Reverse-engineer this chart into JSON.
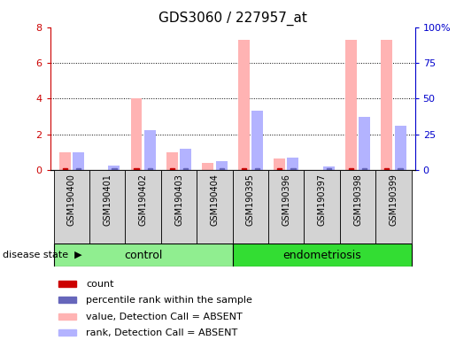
{
  "title": "GDS3060 / 227957_at",
  "samples": [
    "GSM190400",
    "GSM190401",
    "GSM190402",
    "GSM190403",
    "GSM190404",
    "GSM190395",
    "GSM190396",
    "GSM190397",
    "GSM190398",
    "GSM190399"
  ],
  "pink_values": [
    1.0,
    0.0,
    4.0,
    1.0,
    0.38,
    7.3,
    0.65,
    0.0,
    7.3,
    7.3
  ],
  "blue_values": [
    1.0,
    0.25,
    2.22,
    1.2,
    0.5,
    3.3,
    0.68,
    0.22,
    3.0,
    2.5
  ],
  "red_counts": [
    1,
    0,
    1,
    1,
    0,
    1,
    1,
    0,
    1,
    1
  ],
  "blue_counts": [
    1,
    1,
    1,
    1,
    1,
    1,
    1,
    1,
    1,
    1
  ],
  "ylim_left": [
    0,
    8
  ],
  "ylim_right": [
    0,
    100
  ],
  "yticks_left": [
    0,
    2,
    4,
    6,
    8
  ],
  "yticks_right": [
    0,
    25,
    50,
    75,
    100
  ],
  "ytick_labels_right": [
    "0",
    "25",
    "50",
    "75",
    "100%"
  ],
  "grid_lines": [
    2,
    4,
    6
  ],
  "pink_color": "#FFB3B3",
  "blue_color": "#B3B3FF",
  "red_count_color": "#CC0000",
  "blue_count_color": "#6666BB",
  "left_axis_color": "#CC0000",
  "right_axis_color": "#0000CC",
  "sample_box_color": "#D3D3D3",
  "control_color": "#90EE90",
  "endometriosis_color": "#33DD33",
  "bar_width": 0.32,
  "bar_gap": 0.06
}
